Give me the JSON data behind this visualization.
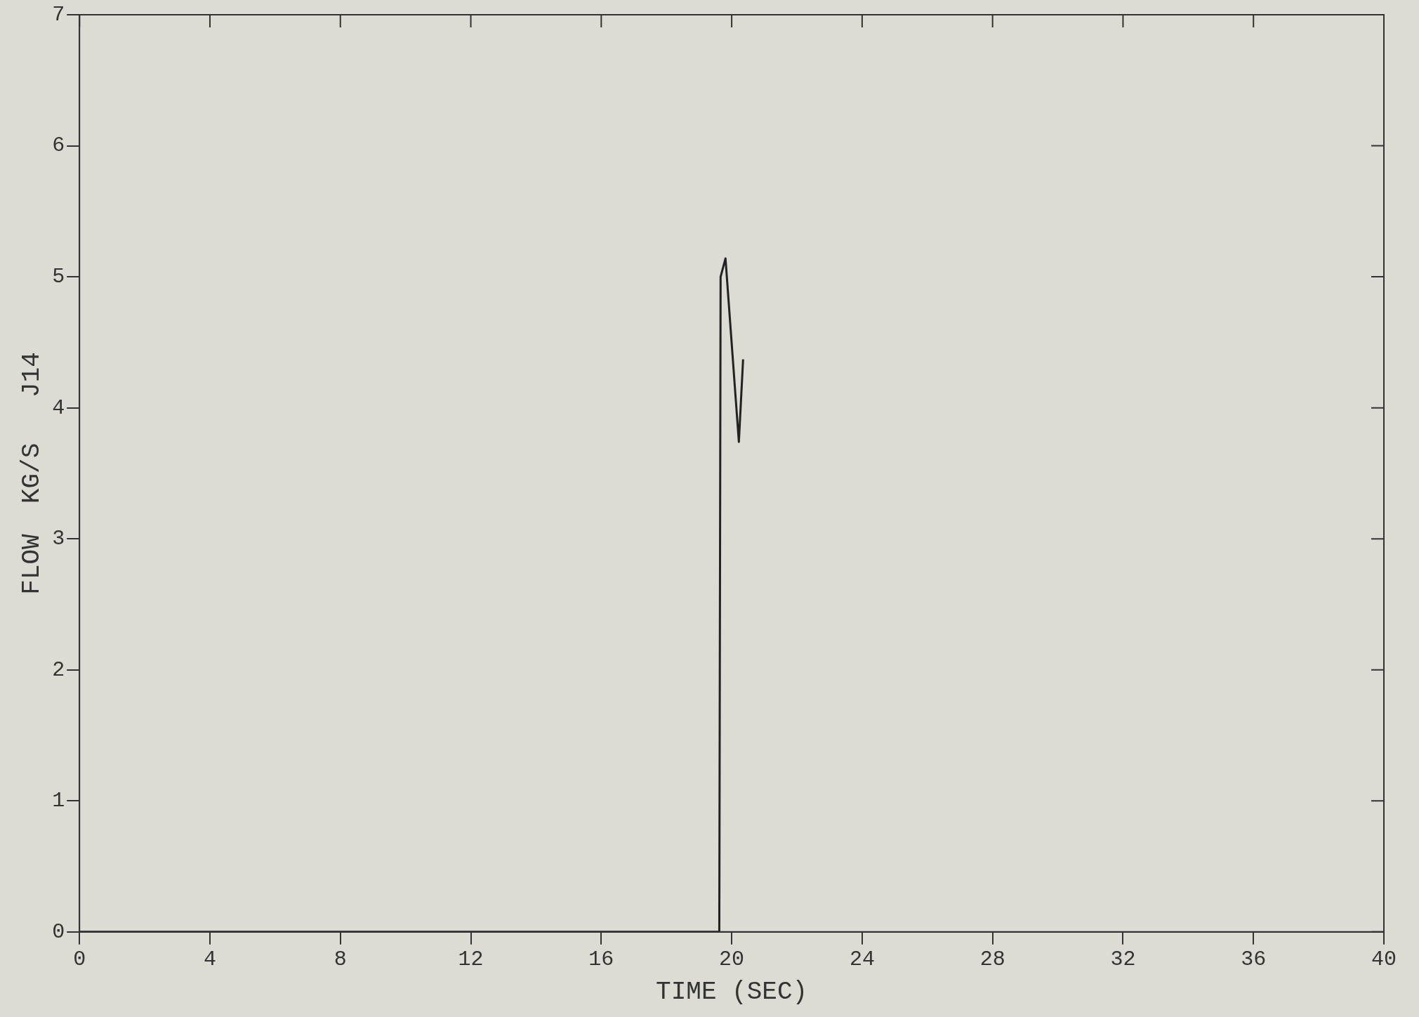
{
  "chart_data": {
    "type": "line",
    "xlabel": "TIME (SEC)",
    "ylabel": "FLOW  KG/S   J14",
    "series": [
      {
        "color": "#222222",
        "x": [
          0,
          19.62,
          19.66,
          19.81,
          20.22,
          20.35
        ],
        "values": [
          0,
          0,
          5.0,
          5.14,
          3.74,
          4.37
        ]
      }
    ],
    "xlim": [
      0,
      40
    ],
    "xticks": [
      0,
      4,
      8,
      12,
      16,
      20,
      24,
      28,
      32,
      36,
      40
    ],
    "ylim": [
      0,
      7
    ],
    "yticks": [
      0,
      1,
      2,
      3,
      4,
      5,
      6,
      7
    ],
    "grid": false,
    "legend": false,
    "marker": "none",
    "line_style": "solid"
  }
}
